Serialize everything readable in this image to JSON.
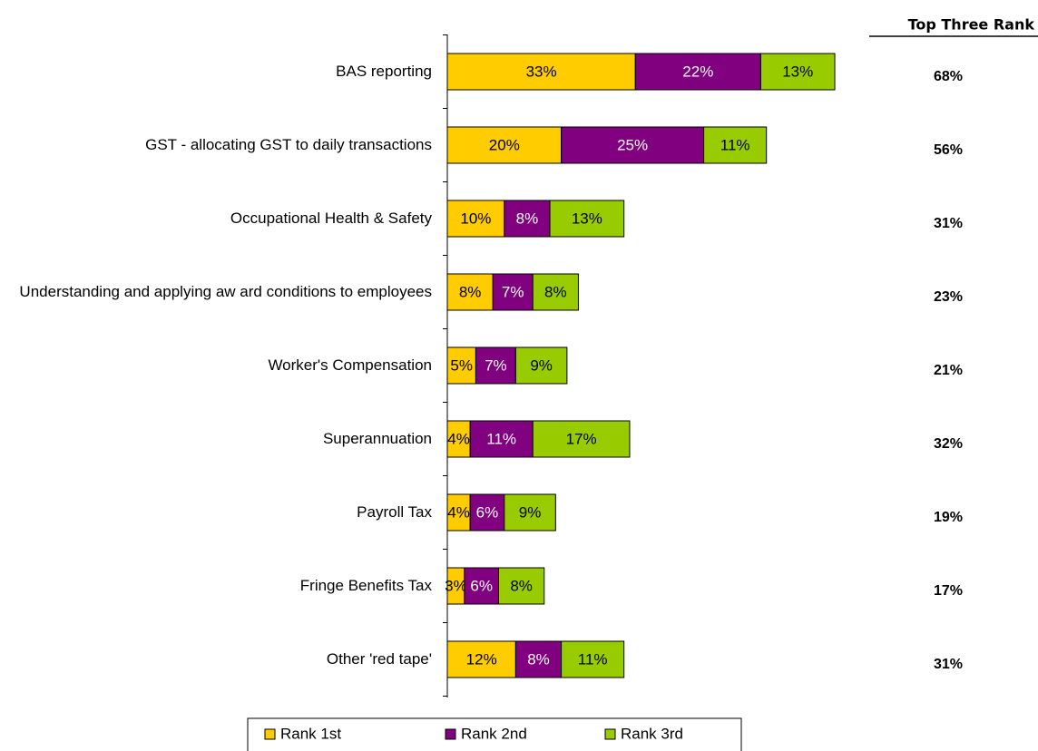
{
  "chart_data": {
    "type": "stacked_barh",
    "categories": [
      "BAS reporting",
      "GST - allocating GST to daily transactions",
      "Occupational Health & Safety",
      "Understanding and applying aw ard conditions to employees",
      "Worker's Compensation",
      "Superannuation",
      "Payroll Tax",
      "Fringe Benefits Tax",
      "Other 'red tape'"
    ],
    "series": [
      {
        "name": "Rank 1st",
        "color": "#ffcc00",
        "values": [
          33,
          20,
          10,
          8,
          5,
          4,
          4,
          3,
          12
        ],
        "value_labels": [
          "33%",
          "20%",
          "10%",
          "8%",
          "5%",
          "4%",
          "4%",
          "3%",
          "12%"
        ]
      },
      {
        "name": "Rank 2nd",
        "color": "#800080",
        "values": [
          22,
          25,
          8,
          7,
          7,
          11,
          6,
          6,
          8
        ],
        "value_labels": [
          "22%",
          "25%",
          "8%",
          "7%",
          "7%",
          "11%",
          "6%",
          "6%",
          "8%"
        ]
      },
      {
        "name": "Rank 3rd",
        "color": "#99cc00",
        "values": [
          13,
          11,
          13,
          8,
          9,
          17,
          9,
          8,
          11
        ],
        "value_labels": [
          "13%",
          "11%",
          "13%",
          "8%",
          "9%",
          "17%",
          "9%",
          "8%",
          "11%"
        ]
      }
    ],
    "top_three": {
      "title": "Top Three Rank",
      "values": [
        68,
        56,
        31,
        23,
        21,
        32,
        19,
        17,
        31
      ],
      "value_labels": [
        "68%",
        "56%",
        "31%",
        "23%",
        "21%",
        "32%",
        "19%",
        "17%",
        "31%"
      ]
    },
    "xlim": [
      0,
      100
    ],
    "legend": "bottom"
  }
}
